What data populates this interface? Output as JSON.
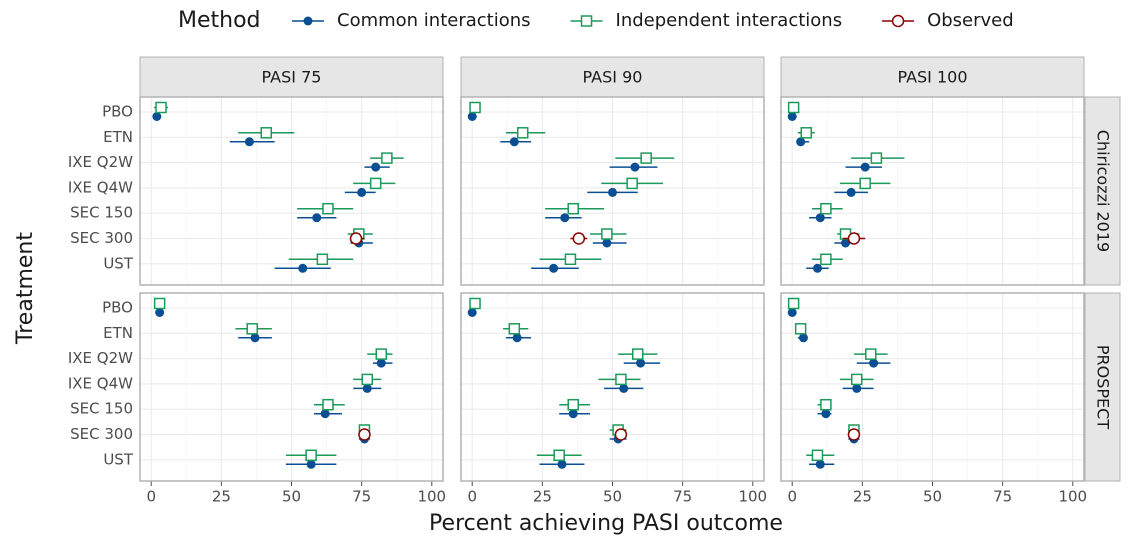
{
  "chart_data": {
    "type": "errorbar",
    "x_label": "Percent achieving PASI outcome",
    "y_label": "Treatment",
    "legend_title": "Method",
    "legend_position": "top",
    "columns": [
      "PASI 75",
      "PASI 90",
      "PASI 100"
    ],
    "rows": [
      "Chiricozzi 2019",
      "PROSPECT"
    ],
    "categories": [
      "PBO",
      "ETN",
      "IXE Q2W",
      "IXE Q4W",
      "SEC 150",
      "SEC 300",
      "UST"
    ],
    "xlim": [
      -4,
      104
    ],
    "xticks": [
      0,
      25,
      50,
      75,
      100
    ],
    "grid": true,
    "series": [
      {
        "name": "Common interactions",
        "color": "#0a4f94",
        "marker": "filled-circle",
        "values": [
          [
            2,
            35,
            80,
            75,
            59,
            74,
            54
          ],
          [
            0,
            15,
            58,
            50,
            33,
            48,
            29
          ],
          [
            0,
            3,
            26,
            21,
            10,
            19,
            9
          ],
          [
            3,
            37,
            82,
            77,
            62,
            76,
            57
          ],
          [
            0,
            16,
            60,
            54,
            36,
            52,
            32
          ],
          [
            0,
            4,
            29,
            23,
            12,
            22,
            10
          ]
        ],
        "lower": [
          [
            1,
            28,
            76,
            69,
            52,
            71,
            44
          ],
          [
            0,
            10,
            49,
            41,
            26,
            43,
            21
          ],
          [
            0,
            2,
            19,
            15,
            6,
            15,
            5
          ],
          [
            2,
            31,
            79,
            72,
            58,
            74,
            48
          ],
          [
            0,
            12,
            54,
            47,
            31,
            49,
            24
          ],
          [
            0,
            2,
            23,
            18,
            9,
            20,
            6
          ]
        ],
        "upper": [
          [
            3,
            44,
            85,
            80,
            66,
            79,
            64
          ],
          [
            1,
            21,
            66,
            59,
            39,
            55,
            38
          ],
          [
            1,
            6,
            32,
            27,
            14,
            23,
            13
          ],
          [
            3,
            43,
            86,
            82,
            68,
            78,
            66
          ],
          [
            1,
            21,
            67,
            61,
            42,
            55,
            40
          ],
          [
            1,
            5,
            35,
            29,
            14,
            24,
            15
          ]
        ]
      },
      {
        "name": "Independent interactions",
        "color": "#1a9a5a",
        "marker": "open-square",
        "values": [
          [
            3.5,
            41,
            84,
            80,
            63,
            74,
            61
          ],
          [
            1,
            18,
            62,
            57,
            36,
            48,
            35
          ],
          [
            0.5,
            5,
            30,
            26,
            12,
            19,
            12
          ],
          [
            3,
            36,
            82,
            77,
            63,
            76,
            57
          ],
          [
            1,
            15,
            59,
            53,
            36,
            52,
            31
          ],
          [
            0.5,
            3,
            28,
            23,
            12,
            22,
            9
          ]
        ],
        "lower": [
          [
            1,
            31,
            78,
            72,
            52,
            70,
            49
          ],
          [
            0,
            12,
            51,
            46,
            26,
            42,
            24
          ],
          [
            0,
            2,
            21,
            17,
            7,
            16,
            7
          ],
          [
            2,
            30,
            77,
            72,
            58,
            74,
            48
          ],
          [
            0,
            11,
            52,
            45,
            31,
            49,
            23
          ],
          [
            0,
            2,
            22,
            17,
            9,
            20,
            5
          ]
        ],
        "upper": [
          [
            6,
            51,
            90,
            87,
            72,
            79,
            72
          ],
          [
            2,
            26,
            72,
            68,
            47,
            55,
            46
          ],
          [
            1,
            8,
            40,
            35,
            18,
            24,
            18
          ],
          [
            4,
            43,
            86,
            82,
            69,
            78,
            66
          ],
          [
            2,
            20,
            66,
            60,
            42,
            55,
            39
          ],
          [
            1,
            5,
            34,
            29,
            14,
            23,
            15
          ]
        ]
      },
      {
        "name": "Observed",
        "color": "#8b0000",
        "marker": "open-circle",
        "values": [
          [
            null,
            null,
            null,
            null,
            null,
            73,
            null
          ],
          [
            null,
            null,
            null,
            null,
            null,
            38,
            null
          ],
          [
            null,
            null,
            null,
            null,
            null,
            22,
            null
          ],
          [
            null,
            null,
            null,
            null,
            null,
            76,
            null
          ],
          [
            null,
            null,
            null,
            null,
            null,
            53,
            null
          ],
          [
            null,
            null,
            null,
            null,
            null,
            22,
            null
          ]
        ],
        "lower": [
          [
            null,
            null,
            null,
            null,
            null,
            71,
            null
          ],
          [
            null,
            null,
            null,
            null,
            null,
            35,
            null
          ],
          [
            null,
            null,
            null,
            null,
            null,
            18,
            null
          ],
          [
            null,
            null,
            null,
            null,
            null,
            null,
            null
          ],
          [
            null,
            null,
            null,
            null,
            null,
            null,
            null
          ],
          [
            null,
            null,
            null,
            null,
            null,
            null,
            null
          ]
        ],
        "upper": [
          [
            null,
            null,
            null,
            null,
            null,
            76,
            null
          ],
          [
            null,
            null,
            null,
            null,
            null,
            41,
            null
          ],
          [
            null,
            null,
            null,
            null,
            null,
            26,
            null
          ],
          [
            null,
            null,
            null,
            null,
            null,
            null,
            null
          ],
          [
            null,
            null,
            null,
            null,
            null,
            null,
            null
          ],
          [
            null,
            null,
            null,
            null,
            null,
            null,
            null
          ]
        ]
      }
    ]
  }
}
